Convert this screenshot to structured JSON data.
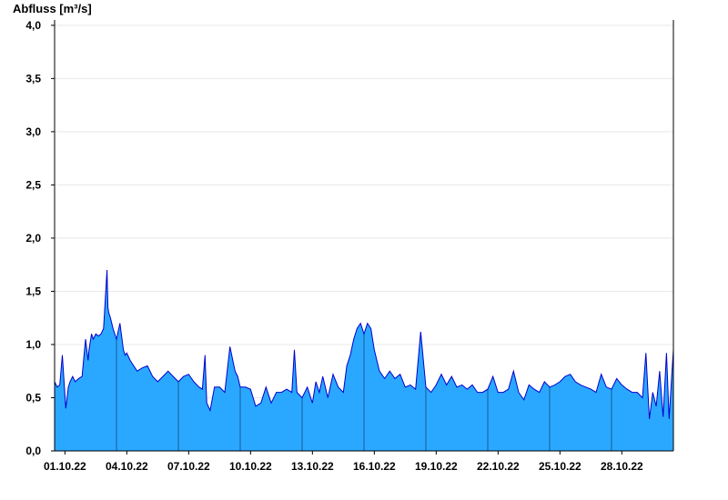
{
  "chart_data": {
    "type": "area",
    "ylabel": "Abfluss [m³/s]",
    "xlabel": "",
    "title": "",
    "ylim": [
      0,
      4.05
    ],
    "xlim": [
      "2022-10-01T00:00",
      "2022-10-31T00:00"
    ],
    "yticks": [
      0,
      0.5,
      1.0,
      1.5,
      2.0,
      2.5,
      3.0,
      3.5,
      4.0
    ],
    "ytick_labels": [
      "0,0",
      "0,5",
      "1,0",
      "1,5",
      "2,0",
      "2,5",
      "3,0",
      "3,5",
      "4,0"
    ],
    "xticks": [
      "2022-10-01T12:00",
      "2022-10-04T12:00",
      "2022-10-07T12:00",
      "2022-10-10T12:00",
      "2022-10-13T12:00",
      "2022-10-16T12:00",
      "2022-10-19T12:00",
      "2022-10-22T12:00",
      "2022-10-25T12:00",
      "2022-10-28T12:00"
    ],
    "xtick_labels": [
      "01.10.22",
      "04.10.22",
      "07.10.22",
      "10.10.22",
      "13.10.22",
      "16.10.22",
      "19.10.22",
      "22.10.22",
      "25.10.22",
      "28.10.22"
    ],
    "vertical_day_lines": [
      "2022-10-04T00:00",
      "2022-10-07T00:00",
      "2022-10-10T00:00",
      "2022-10-13T00:00",
      "2022-10-16T00:00",
      "2022-10-19T00:00",
      "2022-10-22T00:00",
      "2022-10-25T00:00",
      "2022-10-28T00:00"
    ],
    "grid": "horizontal",
    "fill_color": "#2aa8ff",
    "line_color": "#0000cc",
    "series": [
      {
        "x": [
          "2022-10-01T00:00",
          "2022-10-01T03:00",
          "2022-10-01T06:00",
          "2022-10-01T09:00",
          "2022-10-01T13:00",
          "2022-10-01T16:00",
          "2022-10-01T18:00",
          "2022-10-01T21:00",
          "2022-10-02T00:00",
          "2022-10-02T04:00",
          "2022-10-02T08:00",
          "2022-10-02T12:00",
          "2022-10-02T15:00",
          "2022-10-02T16:00",
          "2022-10-02T19:00",
          "2022-10-02T21:00",
          "2022-10-03T00:00",
          "2022-10-03T03:00",
          "2022-10-03T06:00",
          "2022-10-03T09:00",
          "2022-10-03T13:00",
          "2022-10-03T14:00",
          "2022-10-03T15:00",
          "2022-10-03T17:00",
          "2022-10-03T20:00",
          "2022-10-04T00:00",
          "2022-10-04T04:00",
          "2022-10-04T08:00",
          "2022-10-04T10:00",
          "2022-10-04T12:00",
          "2022-10-04T16:00",
          "2022-10-04T20:00",
          "2022-10-05T00:00",
          "2022-10-05T06:00",
          "2022-10-05T12:00",
          "2022-10-05T18:00",
          "2022-10-06T00:00",
          "2022-10-06T06:00",
          "2022-10-06T12:00",
          "2022-10-06T18:00",
          "2022-10-07T00:00",
          "2022-10-07T06:00",
          "2022-10-07T12:00",
          "2022-10-07T18:00",
          "2022-10-08T00:00",
          "2022-10-08T04:00",
          "2022-10-08T07:00",
          "2022-10-08T09:00",
          "2022-10-08T13:00",
          "2022-10-08T18:00",
          "2022-10-09T00:00",
          "2022-10-09T06:00",
          "2022-10-09T12:00",
          "2022-10-09T18:00",
          "2022-10-09T21:00",
          "2022-10-10T00:00",
          "2022-10-10T06:00",
          "2022-10-10T12:00",
          "2022-10-10T18:00",
          "2022-10-11T00:00",
          "2022-10-11T06:00",
          "2022-10-11T12:00",
          "2022-10-11T18:00",
          "2022-10-12T00:00",
          "2022-10-12T06:00",
          "2022-10-12T12:00",
          "2022-10-12T15:00",
          "2022-10-12T18:00",
          "2022-10-13T00:00",
          "2022-10-13T06:00",
          "2022-10-13T12:00",
          "2022-10-13T16:00",
          "2022-10-13T20:00",
          "2022-10-14T00:00",
          "2022-10-14T06:00",
          "2022-10-14T12:00",
          "2022-10-14T18:00",
          "2022-10-15T00:00",
          "2022-10-15T04:00",
          "2022-10-15T08:00",
          "2022-10-15T12:00",
          "2022-10-15T16:00",
          "2022-10-15T20:00",
          "2022-10-16T00:00",
          "2022-10-16T04:00",
          "2022-10-16T08:00",
          "2022-10-16T12:00",
          "2022-10-16T18:00",
          "2022-10-17T00:00",
          "2022-10-17T06:00",
          "2022-10-17T12:00",
          "2022-10-17T18:00",
          "2022-10-18T00:00",
          "2022-10-18T06:00",
          "2022-10-18T12:00",
          "2022-10-18T18:00",
          "2022-10-19T00:00",
          "2022-10-19T06:00",
          "2022-10-19T12:00",
          "2022-10-19T18:00",
          "2022-10-20T00:00",
          "2022-10-20T06:00",
          "2022-10-20T12:00",
          "2022-10-20T18:00",
          "2022-10-21T00:00",
          "2022-10-21T06:00",
          "2022-10-21T12:00",
          "2022-10-21T18:00",
          "2022-10-22T00:00",
          "2022-10-22T06:00",
          "2022-10-22T12:00",
          "2022-10-22T18:00",
          "2022-10-23T00:00",
          "2022-10-23T06:00",
          "2022-10-23T12:00",
          "2022-10-23T18:00",
          "2022-10-24T00:00",
          "2022-10-24T06:00",
          "2022-10-24T12:00",
          "2022-10-24T18:00",
          "2022-10-25T00:00",
          "2022-10-25T06:00",
          "2022-10-25T12:00",
          "2022-10-25T18:00",
          "2022-10-26T00:00",
          "2022-10-26T06:00",
          "2022-10-26T12:00",
          "2022-10-26T18:00",
          "2022-10-27T00:00",
          "2022-10-27T06:00",
          "2022-10-27T12:00",
          "2022-10-27T18:00",
          "2022-10-28T00:00",
          "2022-10-28T06:00",
          "2022-10-28T12:00",
          "2022-10-28T18:00",
          "2022-10-29T00:00",
          "2022-10-29T06:00",
          "2022-10-29T12:00",
          "2022-10-29T16:00",
          "2022-10-29T20:00",
          "2022-10-30T00:00",
          "2022-10-30T04:00",
          "2022-10-30T08:00",
          "2022-10-30T12:00",
          "2022-10-30T16:00",
          "2022-10-30T19:00",
          "2022-10-30T22:00",
          "2022-10-31T00:00"
        ],
        "y": [
          0.65,
          0.6,
          0.62,
          0.9,
          0.4,
          0.6,
          0.65,
          0.7,
          0.65,
          0.68,
          0.7,
          1.05,
          0.85,
          0.95,
          1.1,
          1.05,
          1.1,
          1.08,
          1.1,
          1.15,
          1.7,
          1.35,
          1.3,
          1.25,
          1.15,
          1.05,
          1.2,
          0.95,
          0.9,
          0.92,
          0.85,
          0.8,
          0.75,
          0.78,
          0.8,
          0.7,
          0.65,
          0.7,
          0.75,
          0.7,
          0.65,
          0.7,
          0.72,
          0.65,
          0.6,
          0.58,
          0.9,
          0.45,
          0.38,
          0.6,
          0.6,
          0.55,
          0.98,
          0.75,
          0.7,
          0.6,
          0.6,
          0.58,
          0.42,
          0.45,
          0.6,
          0.45,
          0.55,
          0.55,
          0.58,
          0.55,
          0.95,
          0.55,
          0.5,
          0.6,
          0.45,
          0.65,
          0.55,
          0.7,
          0.5,
          0.72,
          0.6,
          0.55,
          0.8,
          0.9,
          1.05,
          1.15,
          1.2,
          1.1,
          1.2,
          1.15,
          0.95,
          0.75,
          0.68,
          0.75,
          0.68,
          0.72,
          0.6,
          0.62,
          0.58,
          1.12,
          0.6,
          0.55,
          0.62,
          0.72,
          0.62,
          0.7,
          0.6,
          0.62,
          0.58,
          0.62,
          0.55,
          0.55,
          0.58,
          0.7,
          0.55,
          0.55,
          0.58,
          0.75,
          0.55,
          0.48,
          0.62,
          0.58,
          0.55,
          0.65,
          0.6,
          0.62,
          0.65,
          0.7,
          0.72,
          0.65,
          0.62,
          0.6,
          0.58,
          0.55,
          0.72,
          0.6,
          0.58,
          0.68,
          0.62,
          0.58,
          0.55,
          0.55,
          0.5,
          0.92,
          0.3,
          0.55,
          0.42,
          0.75,
          0.32,
          0.92,
          0.3,
          0.7,
          0.95
        ]
      }
    ]
  }
}
